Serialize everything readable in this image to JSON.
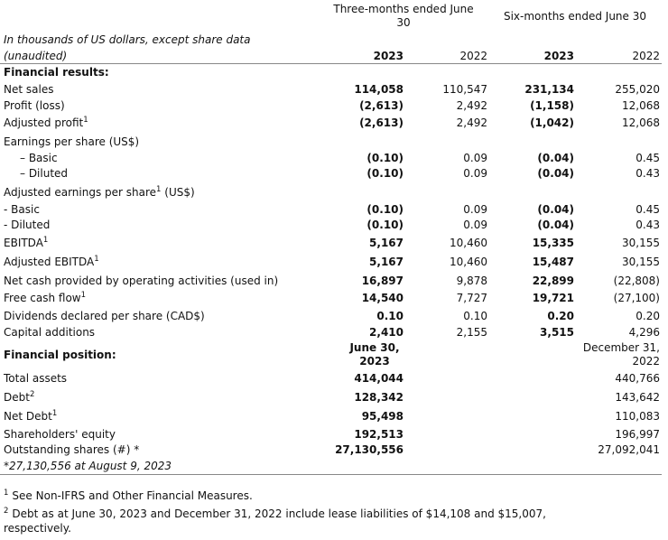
{
  "header": {
    "three_months": [
      "Three-months ended June",
      "30"
    ],
    "six_months": "Six-months ended June 30",
    "intro": [
      "In thousands of US dollars, except share data",
      "(unaudited)"
    ],
    "years": [
      "2023",
      "2022",
      "2023",
      "2022"
    ]
  },
  "results": {
    "heading": "Financial results:",
    "rows": [
      {
        "label": "Net sales",
        "values": [
          "114,058",
          "110,547",
          "231,134",
          "255,020"
        ]
      },
      {
        "label": "Profit (loss)",
        "values": [
          "(2,613)",
          "2,492",
          "(1,158)",
          "12,068"
        ]
      },
      {
        "label": "Adjusted profit",
        "sup": "1",
        "values": [
          "(2,613)",
          "2,492",
          "(1,042)",
          "12,068"
        ]
      },
      {
        "label": "Earnings per share (US$)"
      },
      {
        "label": "– Basic",
        "values": [
          "(0.10)",
          "0.09",
          "(0.04)",
          "0.45"
        ]
      },
      {
        "label": "– Diluted",
        "values": [
          "(0.10)",
          "0.09",
          "(0.04)",
          "0.43"
        ]
      },
      {
        "label": "Adjusted earnings per share",
        "sup": "1",
        "after": " (US$)"
      },
      {
        "label": "- Basic",
        "values": [
          "(0.10)",
          "0.09",
          "(0.04)",
          "0.45"
        ]
      },
      {
        "label": "- Diluted",
        "values": [
          "(0.10)",
          "0.09",
          "(0.04)",
          "0.43"
        ]
      },
      {
        "label": "EBITDA",
        "sup": "1",
        "values": [
          "5,167",
          "10,460",
          "15,335",
          "30,155"
        ]
      },
      {
        "label": "Adjusted EBITDA",
        "sup": "1",
        "values": [
          "5,167",
          "10,460",
          "15,487",
          "30,155"
        ]
      },
      {
        "label": "Net cash provided by operating activities (used in)",
        "values": [
          "16,897",
          "9,878",
          "22,899",
          "(22,808)"
        ]
      },
      {
        "label": "Free cash flow",
        "sup": "1",
        "values": [
          "14,540",
          "7,727",
          "19,721",
          "(27,100)"
        ]
      },
      {
        "label": "Dividends declared per share (CAD$)",
        "values": [
          "0.10",
          "0.10",
          "0.20",
          "0.20"
        ]
      },
      {
        "label": "Capital additions",
        "values": [
          "2,410",
          "2,155",
          "3,515",
          "4,296"
        ]
      }
    ]
  },
  "position": {
    "heading": "Financial position:",
    "col_headers": [
      [
        "June 30,",
        "2023"
      ],
      [
        "December 31,",
        "2022"
      ]
    ],
    "rows": [
      {
        "label": "Total assets",
        "values": [
          "414,044",
          "440,766"
        ]
      },
      {
        "label": "Debt",
        "sup": "2",
        "values": [
          "128,342",
          "143,642"
        ]
      },
      {
        "label": "Net Debt",
        "sup": "1",
        "values": [
          "95,498",
          "110,083"
        ]
      },
      {
        "label": "Shareholders' equity",
        "values": [
          "192,513",
          "196,997"
        ]
      },
      {
        "label": "Outstanding shares (#) *",
        "values": [
          "27,130,556",
          "27,092,041"
        ]
      }
    ],
    "note": "*27,130,556 at August 9, 2023"
  },
  "footnotes": [
    {
      "mark": "1",
      "lines": [
        "See Non-IFRS and Other Financial Measures."
      ]
    },
    {
      "mark": "2",
      "lines": [
        "Debt as at June 30, 2023 and December 31, 2022 include lease liabilities of $14,108 and $15,007,",
        "respectively."
      ]
    }
  ]
}
